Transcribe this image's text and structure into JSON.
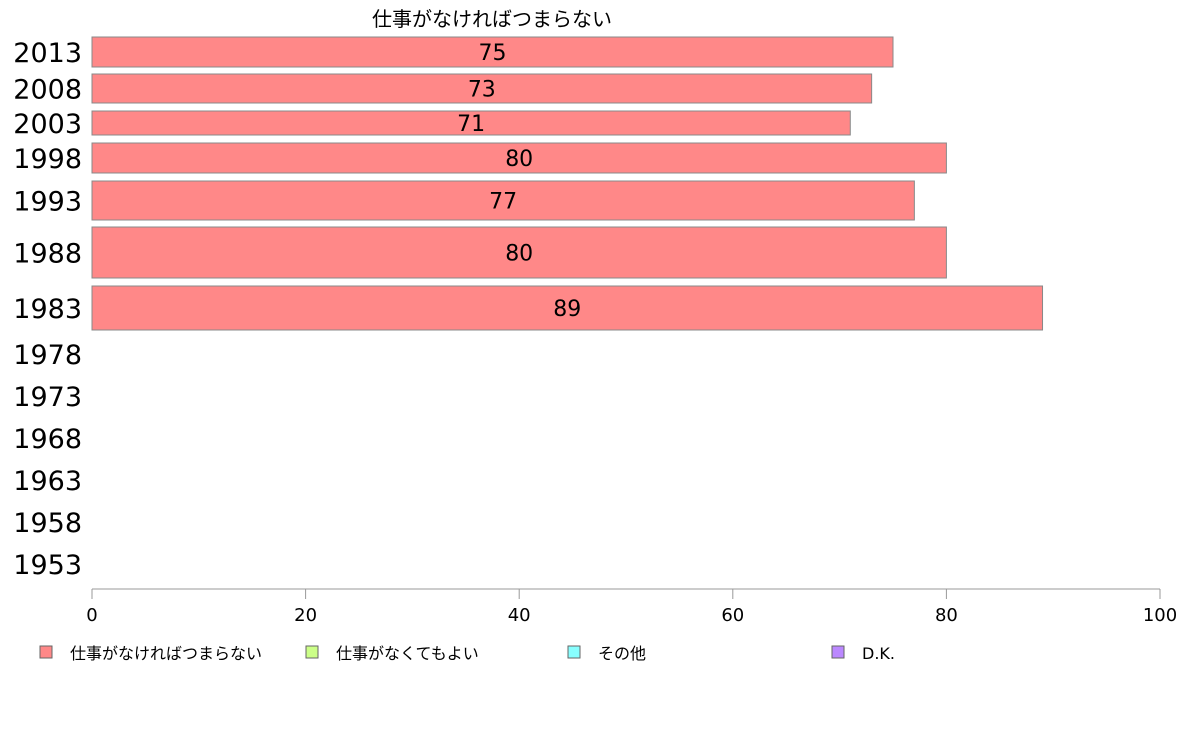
{
  "chart_data": {
    "type": "bar",
    "orientation": "horizontal",
    "title": "仕事がなければつまらない",
    "categories": [
      "2013",
      "2008",
      "2003",
      "1998",
      "1993",
      "1988",
      "1983",
      "1978",
      "1973",
      "1968",
      "1963",
      "1958",
      "1953"
    ],
    "series": [
      {
        "name": "仕事がなければつまらない",
        "color": "#ff8888",
        "values": [
          75,
          73,
          71,
          80,
          77,
          80,
          89,
          null,
          null,
          null,
          null,
          null,
          null
        ]
      }
    ],
    "xlim": [
      0,
      100
    ],
    "xticks": [
      0,
      20,
      40,
      60,
      80,
      100
    ],
    "legend": {
      "placement": "bottom",
      "entries": [
        {
          "label": "仕事がなければつまらない",
          "color": "#ff8888"
        },
        {
          "label": "仕事がなくてもよい",
          "color": "#ccff88"
        },
        {
          "label": "その他",
          "color": "#88ffff"
        },
        {
          "label": "D.K.",
          "color": "#bb88ff"
        }
      ]
    },
    "grid": false
  }
}
